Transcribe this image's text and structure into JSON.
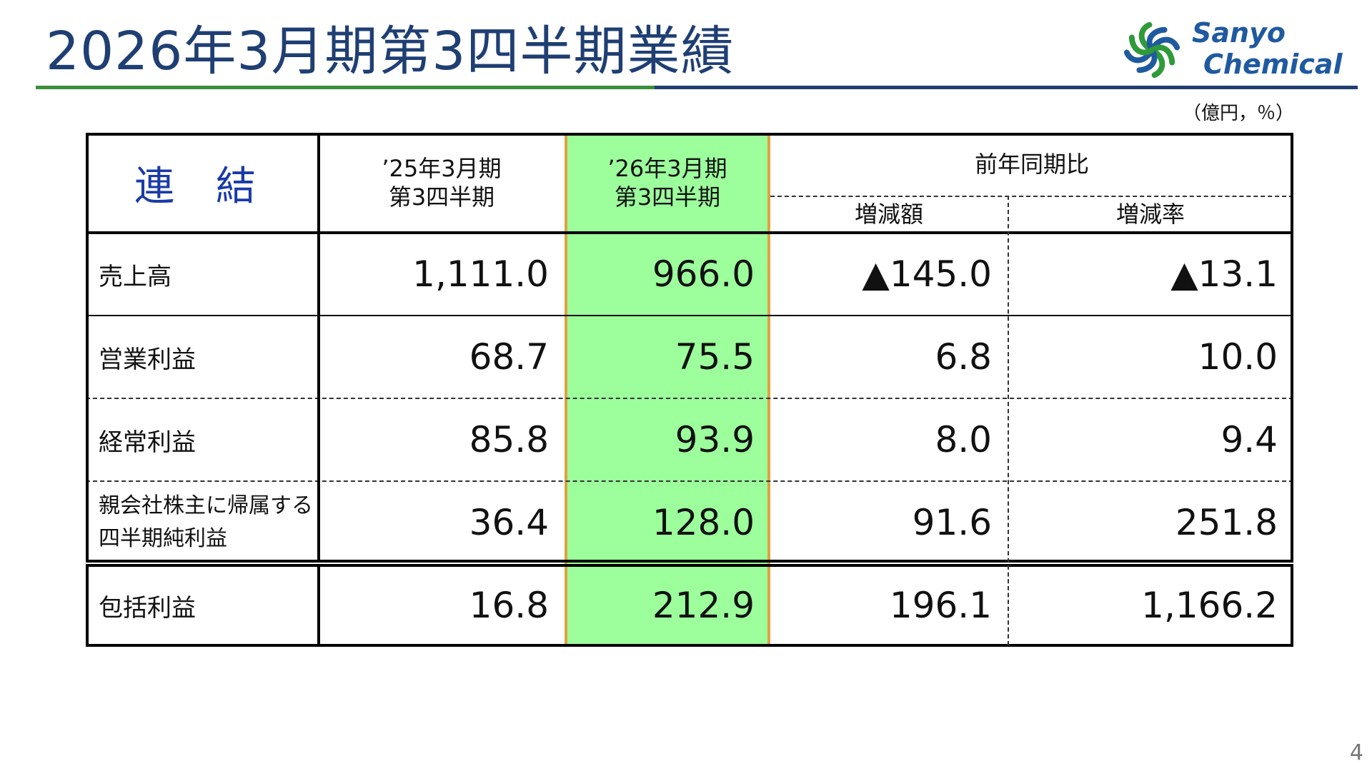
{
  "title": "2026年3月期第3四半期業績",
  "logo": {
    "line1": "Sanyo",
    "line2": "Chemical"
  },
  "unit": "（億円，％）",
  "table": {
    "corner": "連 結",
    "col1": {
      "line1": "’25年3月期",
      "line2": "第3四半期"
    },
    "col2": {
      "line1": "’26年3月期",
      "line2": "第3四半期"
    },
    "yoy": "前年同期比",
    "yoy_diff": "増減額",
    "yoy_rate": "増減率",
    "rows": [
      {
        "label": "売上高",
        "prev": "1,111.0",
        "curr": "966.0",
        "diff": "▲145.0",
        "rate": "▲13.1"
      },
      {
        "label": "営業利益",
        "prev": "68.7",
        "curr": "75.5",
        "diff": "6.8",
        "rate": "10.0"
      },
      {
        "label": "経常利益",
        "prev": "85.8",
        "curr": "93.9",
        "diff": "8.0",
        "rate": "9.4"
      },
      {
        "label1": "親会社株主に帰属する",
        "label2": "四半期純利益",
        "prev": "36.4",
        "curr": "128.0",
        "diff": "91.6",
        "rate": "251.8"
      }
    ],
    "comprehensive": {
      "label": "包括利益",
      "prev": "16.8",
      "curr": "212.9",
      "diff": "196.1",
      "rate": "1,166.2"
    }
  },
  "page_number": "4",
  "colors": {
    "title": "#1f3f73",
    "highlight": "#9cff9c",
    "highlight_border": "#e0a040",
    "renketsu": "#1a3aa8"
  }
}
